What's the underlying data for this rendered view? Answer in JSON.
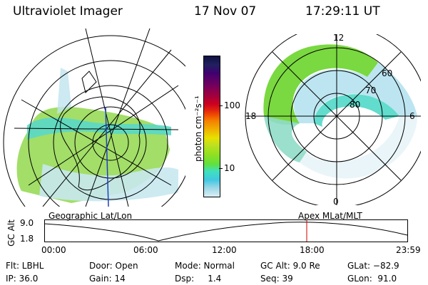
{
  "header": {
    "instrument": "Ultraviolet Imager",
    "date": "17 Nov 07",
    "time": "17:29:11 UT"
  },
  "colorbar": {
    "label": "photon cm⁻²s⁻¹",
    "ticks": [
      "100",
      "10"
    ],
    "colors": [
      "#101040",
      "#202060",
      "#400070",
      "#700060",
      "#a00040",
      "#cc0020",
      "#e02010",
      "#f05000",
      "#f58000",
      "#f0b000",
      "#e8e000",
      "#c0e020",
      "#90e020",
      "#60e040",
      "#40e0c0",
      "#40c8e0",
      "#a0d8e8",
      "#d8eef4"
    ]
  },
  "geo_panel": {
    "label": "Geographic Lat/Lon"
  },
  "apex_panel": {
    "label": "Apex  MLat/MLT",
    "mlt_labels": {
      "top": "12",
      "left": "18",
      "right": "6",
      "bottom": "0"
    },
    "lat_labels": [
      "60",
      "70",
      "80"
    ]
  },
  "altitude_plot": {
    "ylabel": "GC Alt",
    "yticks": [
      "9.0",
      "1.8"
    ],
    "xticks": [
      "00:00",
      "06:00",
      "12:00",
      "18:00",
      "23:59"
    ],
    "marker_color": "#cc0000"
  },
  "info": {
    "flt": "Flt: LBHL",
    "ip": "IP: 36.0",
    "door": "Door: Open",
    "gain": "Gain: 14",
    "mode": "Mode: Normal",
    "dsp": "Dsp:     1.4",
    "gc_alt": "GC Alt: 9.0 Re",
    "seq": "Seq: 39",
    "glat": "GLat: −82.9",
    "glon": "GLon:  91.0"
  }
}
